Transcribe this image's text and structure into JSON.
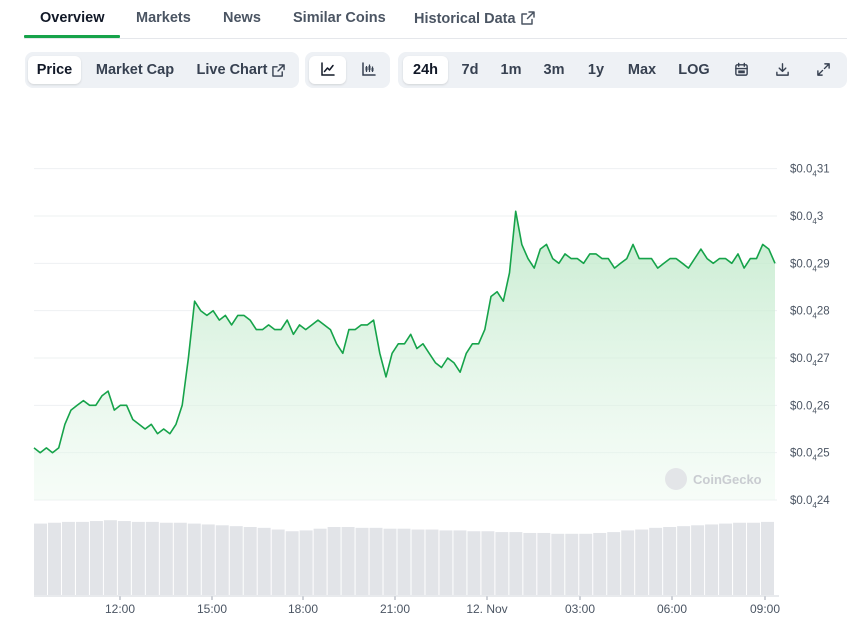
{
  "tabs": [
    {
      "label": "Overview"
    },
    {
      "label": "Markets"
    },
    {
      "label": "News"
    },
    {
      "label": "Similar Coins"
    },
    {
      "label": "Historical Data"
    }
  ],
  "toolbar": {
    "metric_tabs": [
      {
        "label": "Price"
      },
      {
        "label": "Market Cap"
      },
      {
        "label": "Live Chart"
      }
    ],
    "chart_types": [
      "line-chart-icon",
      "candlestick-icon"
    ],
    "ranges": [
      {
        "label": "24h"
      },
      {
        "label": "7d"
      },
      {
        "label": "1m"
      },
      {
        "label": "3m"
      },
      {
        "label": "1y"
      },
      {
        "label": "Max"
      },
      {
        "label": "LOG"
      }
    ],
    "icons": [
      "calendar-icon",
      "download-icon",
      "expand-icon"
    ]
  },
  "watermark": "CoinGecko",
  "colors": {
    "accent": "#16a34a",
    "line": "#16a34a",
    "area_top": "#c7ecd0",
    "volume": "#e2e4e8",
    "grid": "#eef0f2"
  },
  "chart_data": {
    "type": "area",
    "ylim": [
      4.24e-05,
      4.315e-05
    ],
    "y_tick_labels": [
      {
        "prefix": "$0.0",
        "sub": "4",
        "digits": "31"
      },
      {
        "prefix": "$0.0",
        "sub": "4",
        "digits": "3"
      },
      {
        "prefix": "$0.0",
        "sub": "4",
        "digits": "29"
      },
      {
        "prefix": "$0.0",
        "sub": "4",
        "digits": "28"
      },
      {
        "prefix": "$0.0",
        "sub": "4",
        "digits": "27"
      },
      {
        "prefix": "$0.0",
        "sub": "4",
        "digits": "26"
      },
      {
        "prefix": "$0.0",
        "sub": "4",
        "digits": "25"
      },
      {
        "prefix": "$0.0",
        "sub": "4",
        "digits": "24"
      }
    ],
    "x_tick_labels": [
      "12:00",
      "15:00",
      "18:00",
      "21:00",
      "12. Nov",
      "03:00",
      "06:00",
      "09:00"
    ],
    "series": [
      {
        "x": [
          0.0,
          0.2,
          0.4,
          0.6,
          0.8,
          1.0,
          1.2,
          1.4,
          1.6,
          1.8,
          2.0,
          2.2,
          2.4,
          2.6,
          2.8,
          3.0,
          3.2,
          3.4,
          3.6,
          3.8,
          4.0,
          4.2,
          4.4,
          4.6,
          4.8,
          5.0,
          5.2,
          5.4,
          5.6,
          5.8,
          6.0,
          6.2,
          6.4,
          6.6,
          6.8,
          7.0,
          7.2,
          7.4,
          7.6,
          7.8,
          8.0,
          8.2,
          8.4,
          8.6,
          8.8,
          9.0,
          9.2,
          9.4,
          9.6,
          9.8,
          10.0,
          10.2,
          10.4,
          10.6,
          10.8,
          11.0,
          11.2,
          11.4,
          11.6,
          11.8,
          12.0,
          12.2,
          12.4,
          12.6,
          12.8,
          13.0,
          13.2,
          13.4,
          13.6,
          13.8,
          14.0,
          14.2,
          14.4,
          14.6,
          14.8,
          15.0,
          15.2,
          15.4,
          15.6,
          15.8,
          16.0,
          16.2,
          16.4,
          16.6,
          16.8,
          17.0,
          17.2,
          17.4,
          17.6,
          17.8,
          18.0,
          18.2,
          18.4,
          18.6,
          18.8,
          19.0,
          19.2,
          19.4,
          19.6,
          19.8,
          20.0,
          20.2,
          20.4,
          20.6,
          20.8,
          21.0,
          21.2,
          21.4,
          21.6,
          21.8,
          22.0,
          22.2,
          22.4,
          22.6,
          22.8,
          23.0,
          23.2,
          23.4,
          23.6,
          23.8,
          24.0
        ],
        "y": [
          4.251e-05,
          4.25e-05,
          4.251e-05,
          4.25e-05,
          4.251e-05,
          4.256e-05,
          4.259e-05,
          4.26e-05,
          4.261e-05,
          4.26e-05,
          4.26e-05,
          4.262e-05,
          4.263e-05,
          4.259e-05,
          4.26e-05,
          4.26e-05,
          4.257e-05,
          4.256e-05,
          4.255e-05,
          4.256e-05,
          4.254e-05,
          4.255e-05,
          4.254e-05,
          4.256e-05,
          4.26e-05,
          4.27e-05,
          4.282e-05,
          4.28e-05,
          4.279e-05,
          4.28e-05,
          4.278e-05,
          4.279e-05,
          4.277e-05,
          4.279e-05,
          4.279e-05,
          4.278e-05,
          4.276e-05,
          4.276e-05,
          4.277e-05,
          4.276e-05,
          4.276e-05,
          4.278e-05,
          4.275e-05,
          4.277e-05,
          4.276e-05,
          4.277e-05,
          4.278e-05,
          4.277e-05,
          4.276e-05,
          4.273e-05,
          4.271e-05,
          4.276e-05,
          4.276e-05,
          4.277e-05,
          4.277e-05,
          4.278e-05,
          4.271e-05,
          4.266e-05,
          4.271e-05,
          4.273e-05,
          4.273e-05,
          4.275e-05,
          4.272e-05,
          4.273e-05,
          4.271e-05,
          4.269e-05,
          4.268e-05,
          4.27e-05,
          4.269e-05,
          4.267e-05,
          4.271e-05,
          4.273e-05,
          4.273e-05,
          4.276e-05,
          4.283e-05,
          4.284e-05,
          4.282e-05,
          4.288e-05,
          4.301e-05,
          4.294e-05,
          4.291e-05,
          4.289e-05,
          4.293e-05,
          4.294e-05,
          4.291e-05,
          4.29e-05,
          4.292e-05,
          4.291e-05,
          4.291e-05,
          4.29e-05,
          4.292e-05,
          4.292e-05,
          4.291e-05,
          4.291e-05,
          4.289e-05,
          4.29e-05,
          4.291e-05,
          4.294e-05,
          4.291e-05,
          4.291e-05,
          4.291e-05,
          4.289e-05,
          4.29e-05,
          4.291e-05,
          4.291e-05,
          4.29e-05,
          4.289e-05,
          4.291e-05,
          4.293e-05,
          4.291e-05,
          4.29e-05,
          4.291e-05,
          4.291e-05,
          4.29e-05,
          4.292e-05,
          4.289e-05,
          4.291e-05,
          4.291e-05,
          4.294e-05,
          4.293e-05,
          4.29e-05
        ]
      }
    ],
    "volume": [
      0.84,
      0.85,
      0.86,
      0.86,
      0.87,
      0.88,
      0.87,
      0.86,
      0.86,
      0.85,
      0.85,
      0.84,
      0.83,
      0.82,
      0.81,
      0.8,
      0.79,
      0.77,
      0.75,
      0.76,
      0.78,
      0.8,
      0.8,
      0.79,
      0.79,
      0.78,
      0.78,
      0.77,
      0.77,
      0.76,
      0.76,
      0.75,
      0.75,
      0.74,
      0.74,
      0.73,
      0.73,
      0.72,
      0.72,
      0.72,
      0.73,
      0.74,
      0.76,
      0.77,
      0.79,
      0.8,
      0.81,
      0.82,
      0.83,
      0.84,
      0.85,
      0.85,
      0.86
    ],
    "grid": true,
    "legend": "none"
  }
}
